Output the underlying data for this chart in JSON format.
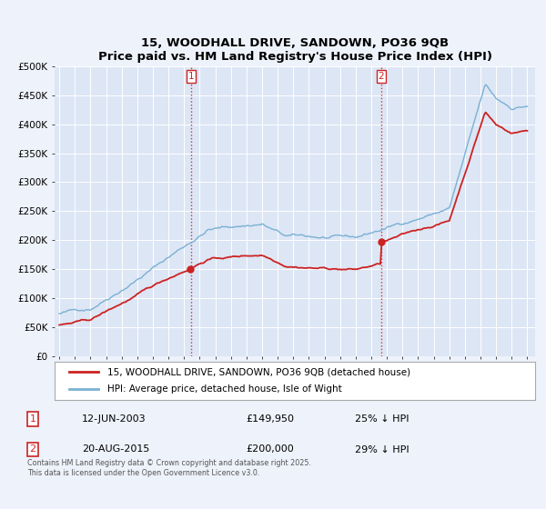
{
  "title": "15, WOODHALL DRIVE, SANDOWN, PO36 9QB",
  "subtitle": "Price paid vs. HM Land Registry's House Price Index (HPI)",
  "ylim": [
    0,
    500000
  ],
  "yticks": [
    0,
    50000,
    100000,
    150000,
    200000,
    250000,
    300000,
    350000,
    400000,
    450000,
    500000
  ],
  "ytick_labels": [
    "£0",
    "£50K",
    "£100K",
    "£150K",
    "£200K",
    "£250K",
    "£300K",
    "£350K",
    "£400K",
    "£450K",
    "£500K"
  ],
  "hpi_color": "#7ab0d4",
  "price_color": "#cc2222",
  "background_color": "#eef2fb",
  "plot_bg_color": "#dde6f5",
  "grid_color": "#ffffff",
  "sale1_date": 2003.45,
  "sale1_price": 149950,
  "sale2_date": 2015.63,
  "sale2_price": 200000,
  "legend_line1": "15, WOODHALL DRIVE, SANDOWN, PO36 9QB (detached house)",
  "legend_line2": "HPI: Average price, detached house, Isle of Wight",
  "footnote": "Contains HM Land Registry data © Crown copyright and database right 2025.\nThis data is licensed under the Open Government Licence v3.0.",
  "table_row1": [
    "1",
    "12-JUN-2003",
    "£149,950",
    "25% ↓ HPI"
  ],
  "table_row2": [
    "2",
    "20-AUG-2015",
    "£200,000",
    "29% ↓ HPI"
  ],
  "xmin": 1994.7,
  "xmax": 2025.5
}
